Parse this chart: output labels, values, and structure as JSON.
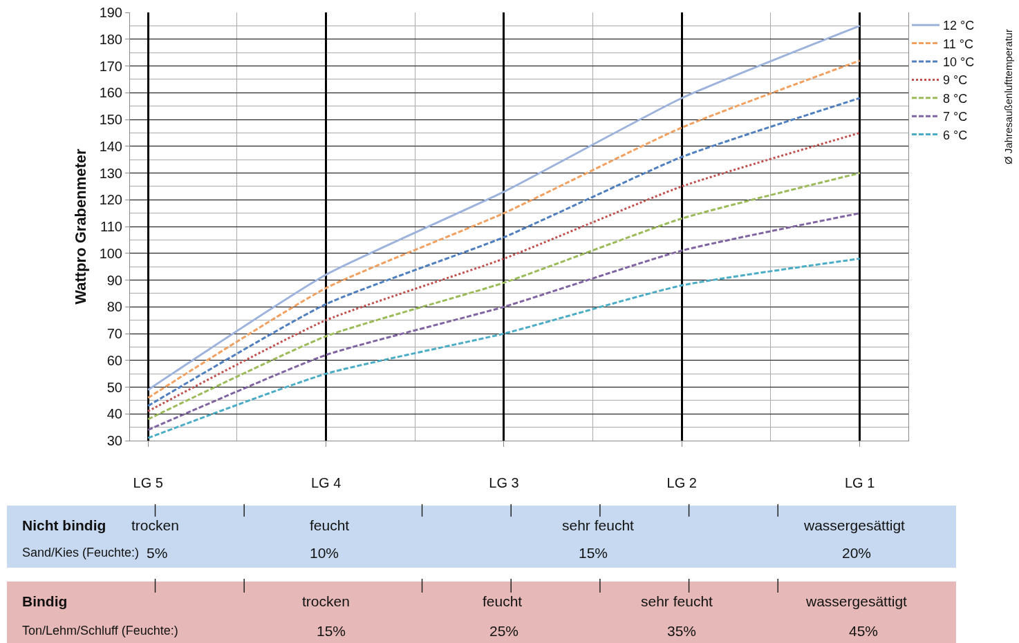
{
  "chart_data": {
    "type": "line",
    "ylabel": "Wattpro Grabenmeter",
    "legend_title": "Ø Jahresaußenlufttemperatur",
    "categories": [
      "LG 5",
      "LG 4",
      "LG 3",
      "LG 2",
      "LG 1"
    ],
    "series": [
      {
        "name": "12 °C",
        "color": "#9db3dc",
        "line_style": "solid",
        "values": [
          49,
          92,
          123,
          158,
          185
        ]
      },
      {
        "name": "11 °C",
        "color": "#f0a060",
        "line_style": "dashed",
        "values": [
          46,
          87,
          115,
          147,
          172
        ]
      },
      {
        "name": "10 °C",
        "color": "#4f7fbf",
        "line_style": "dashed",
        "values": [
          43,
          81,
          106,
          136,
          158
        ]
      },
      {
        "name": "9 °C",
        "color": "#c0504d",
        "line_style": "dotted",
        "values": [
          41,
          75,
          98,
          125,
          145
        ]
      },
      {
        "name": "8 °C",
        "color": "#9bbb59",
        "line_style": "dashed",
        "values": [
          38,
          69,
          89,
          113,
          130
        ]
      },
      {
        "name": "7 °C",
        "color": "#8064a2",
        "line_style": "dashed",
        "values": [
          34,
          62,
          80,
          101,
          115
        ]
      },
      {
        "name": "6 °C",
        "color": "#4bacc6",
        "line_style": "dashed",
        "values": [
          31,
          55,
          70,
          88,
          98
        ]
      }
    ],
    "ylim": [
      30,
      190
    ],
    "yticks": [
      30,
      40,
      50,
      60,
      70,
      80,
      90,
      100,
      110,
      120,
      130,
      140,
      150,
      160,
      170,
      180,
      190
    ],
    "grid": true,
    "legend": "right",
    "marker": "none",
    "annotations": [
      "Nicht bindig",
      "trocken",
      "feucht",
      "sehr feucht",
      "wassergesättigt",
      "Sand/Kies (Feuchte:)",
      "5%",
      "10%",
      "15%",
      "20%",
      "Bindig",
      "trocken",
      "feucht",
      "sehr feucht",
      "wassergesättigt",
      "Ton/Lehm/Schluff (Feuchte:)",
      "15%",
      "25%",
      "35%",
      "45%"
    ]
  }
}
